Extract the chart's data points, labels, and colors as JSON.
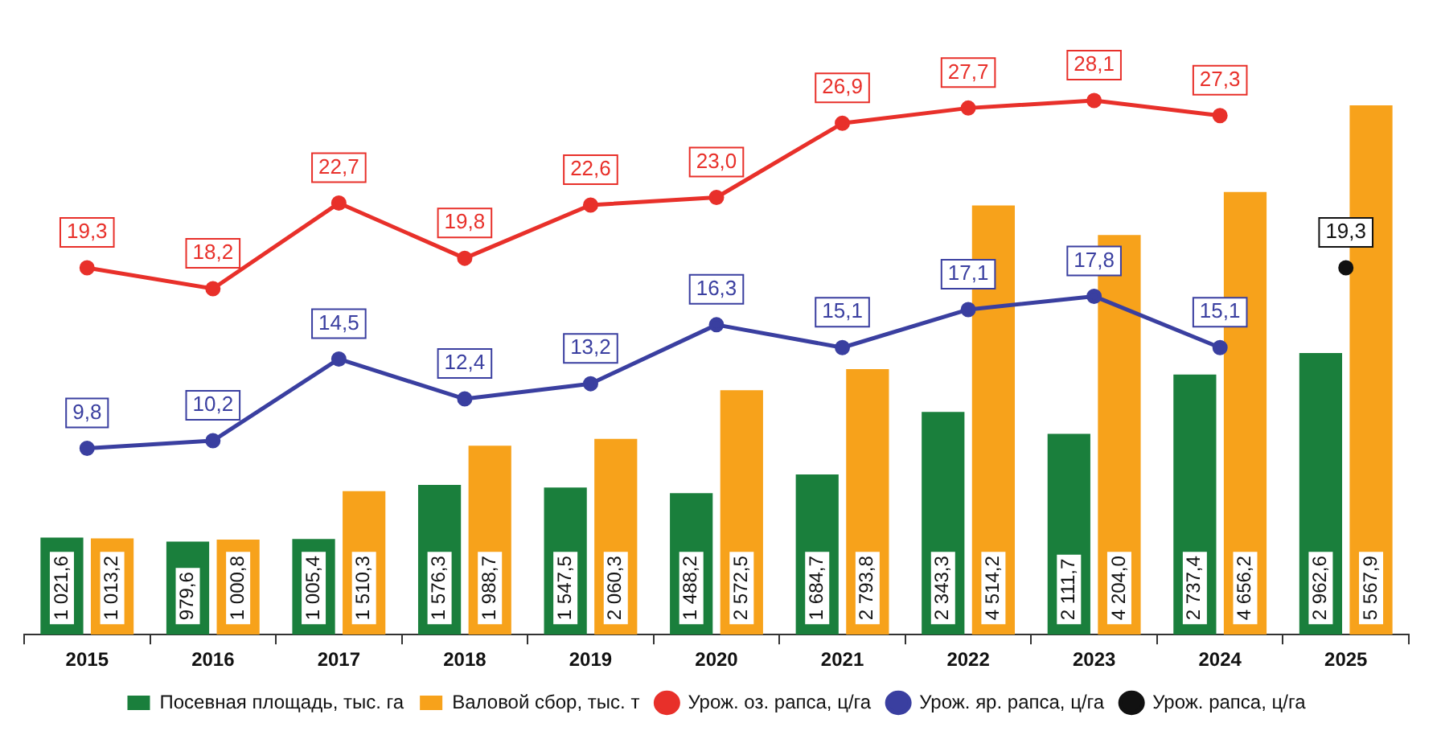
{
  "chart_data": {
    "type": "bar",
    "categories": [
      "2015",
      "2016",
      "2017",
      "2018",
      "2019",
      "2020",
      "2021",
      "2022",
      "2023",
      "2024",
      "2025"
    ],
    "series": [
      {
        "name": "Посевная площадь, тыс. га",
        "color": "#1a7f3c",
        "values": [
          1021.6,
          979.6,
          1005.4,
          1576.3,
          1547.5,
          1488.2,
          1684.7,
          2343.3,
          2111.7,
          2737.4,
          2962.6
        ],
        "value_labels": [
          "1 021,6",
          "979,6",
          "1 005,4",
          "1 576,3",
          "1 547,5",
          "1 488,2",
          "1 684,7",
          "2 343,3",
          "2 111,7",
          "2 737,4",
          "2 962,6"
        ]
      },
      {
        "name": "Валовой сбор, тыс. т",
        "color": "#f7a21b",
        "values": [
          1013.2,
          1000.8,
          1510.3,
          1988.7,
          2060.3,
          2572.5,
          2793.8,
          4514.2,
          4204.0,
          4656.2,
          5567.9
        ],
        "value_labels": [
          "1 013,2",
          "1 000,8",
          "1 510,3",
          "1 988,7",
          "2 060,3",
          "2 572,5",
          "2 793,8",
          "4 514,2",
          "4 204,0",
          "4 656,2",
          "5 567,9"
        ]
      },
      {
        "name": "Урож. оз. рапса, ц/га",
        "type": "line",
        "axis": "y2",
        "color": "#e8302a",
        "values": [
          19.3,
          18.2,
          22.7,
          19.8,
          22.6,
          23.0,
          26.9,
          27.7,
          28.1,
          27.3,
          null
        ],
        "value_labels": [
          "19,3",
          "18,2",
          "22,7",
          "19,8",
          "22,6",
          "23,0",
          "26,9",
          "27,7",
          "28,1",
          "27,3",
          null
        ]
      },
      {
        "name": "Урож. яр. рапса, ц/га",
        "type": "line",
        "axis": "y2",
        "color": "#3a3fa0",
        "values": [
          9.8,
          10.2,
          14.5,
          12.4,
          13.2,
          16.3,
          15.1,
          17.1,
          17.8,
          15.1,
          null
        ],
        "value_labels": [
          "9,8",
          "10,2",
          "14,5",
          "12,4",
          "13,2",
          "16,3",
          "15,1",
          "17,1",
          "17,8",
          "15,1",
          null
        ]
      },
      {
        "name": "Урож. рапса, ц/га",
        "type": "line",
        "axis": "y2",
        "color": "#111111",
        "values": [
          null,
          null,
          null,
          null,
          null,
          null,
          null,
          null,
          null,
          null,
          19.3
        ],
        "value_labels": [
          null,
          null,
          null,
          null,
          null,
          null,
          null,
          null,
          null,
          null,
          "19,3"
        ]
      }
    ],
    "marker": "circle",
    "line_style": "solid",
    "legend": "bottom",
    "grid": false,
    "tick_labels": "x"
  }
}
